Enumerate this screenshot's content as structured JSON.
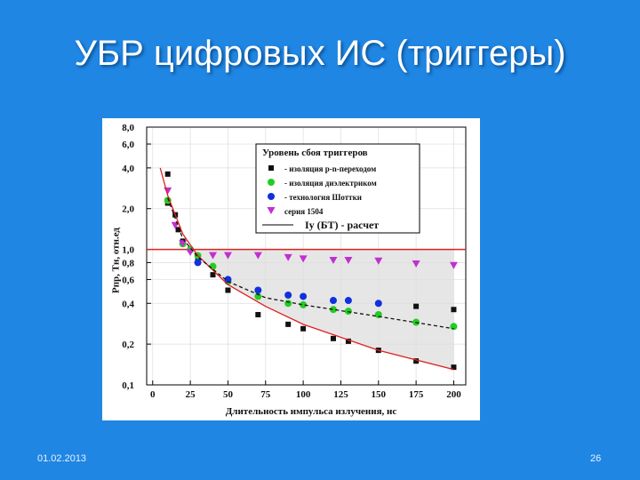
{
  "slide": {
    "title": "УБР цифровых ИС (триггеры)",
    "date": "01.02.2013",
    "page": "26"
  },
  "chart_data": {
    "type": "scatter",
    "log_y": true,
    "grid": true,
    "ylabel": "Pпр, Tн, отн.ед",
    "xlabel": "Длительность импульса излучения, нс",
    "legend_title": "Уровень сбоя триггеров",
    "xlim": [
      -4,
      208
    ],
    "xticks": [
      0,
      25,
      50,
      75,
      100,
      125,
      150,
      175,
      200
    ],
    "ylim": [
      0.1,
      8
    ],
    "yticks": [
      {
        "value": 0.1,
        "label": "0,1"
      },
      {
        "value": 0.2,
        "label": "0,2"
      },
      {
        "value": 0.4,
        "label": "0,4"
      },
      {
        "value": 0.6,
        "label": "0,6"
      },
      {
        "value": 0.8,
        "label": "0,8"
      },
      {
        "value": 1,
        "label": "1,0"
      },
      {
        "value": 2,
        "label": "2,0"
      },
      {
        "value": 4,
        "label": "4,0"
      },
      {
        "value": 6,
        "label": "6,0"
      },
      {
        "value": 8,
        "label": "8,0"
      }
    ],
    "reference_line": {
      "value": 1,
      "color": "#e02020"
    },
    "series": [
      {
        "name": "- изоляция p-n-переходом",
        "marker": "square",
        "color": "#111111",
        "x": [
          10,
          10,
          15,
          17,
          20,
          25,
          30,
          40,
          50,
          70,
          90,
          100,
          120,
          130,
          150,
          175,
          200,
          175,
          200
        ],
        "values": [
          3.6,
          2.2,
          1.8,
          1.4,
          1.15,
          1.0,
          0.85,
          0.65,
          0.5,
          0.33,
          0.28,
          0.26,
          0.22,
          0.21,
          0.18,
          0.15,
          0.135,
          0.38,
          0.36
        ]
      },
      {
        "name": "- изоляция диэлектриком",
        "marker": "circle",
        "color": "#22cc22",
        "x": [
          10,
          20,
          25,
          30,
          40,
          50,
          70,
          90,
          100,
          120,
          130,
          150,
          175,
          200
        ],
        "values": [
          2.3,
          1.1,
          1.0,
          0.9,
          0.75,
          0.58,
          0.45,
          0.4,
          0.39,
          0.36,
          0.35,
          0.33,
          0.29,
          0.27
        ]
      },
      {
        "name": "- технология Шоттки",
        "marker": "circle",
        "color": "#1030e0",
        "x": [
          30,
          50,
          70,
          90,
          100,
          120,
          130,
          150
        ],
        "values": [
          0.8,
          0.6,
          0.5,
          0.46,
          0.45,
          0.42,
          0.42,
          0.4
        ]
      },
      {
        "name": "серия 1504",
        "marker": "triangle",
        "color": "#c030d0",
        "x": [
          10,
          15,
          20,
          25,
          40,
          50,
          70,
          90,
          100,
          120,
          130,
          150,
          175,
          200
        ],
        "values": [
          2.7,
          1.5,
          1.1,
          0.95,
          0.9,
          0.9,
          0.9,
          0.87,
          0.85,
          0.83,
          0.83,
          0.82,
          0.78,
          0.76
        ]
      },
      {
        "name": "Iу (БТ) - расчет",
        "marker": "line",
        "color": "#e02020",
        "x": [
          5,
          10,
          20,
          30,
          50,
          75,
          100,
          150,
          200
        ],
        "values": [
          4,
          2.5,
          1.3,
          0.9,
          0.55,
          0.38,
          0.28,
          0.18,
          0.13
        ]
      },
      {
        "marker": "dash",
        "color": "#111111",
        "x": [
          10,
          20,
          30,
          50,
          75,
          100,
          150,
          200
        ],
        "values": [
          2.4,
          1.2,
          0.88,
          0.58,
          0.44,
          0.39,
          0.32,
          0.26
        ]
      }
    ]
  }
}
